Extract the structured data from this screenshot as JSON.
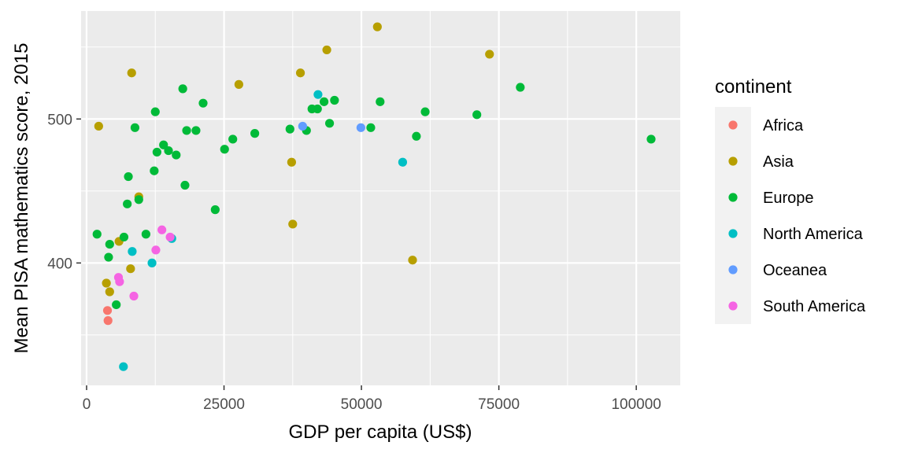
{
  "chart_data": {
    "type": "scatter",
    "xlabel": "GDP per capita (US$)",
    "ylabel": "Mean PISA mathematics score, 2015",
    "xlim": [
      -1000,
      108000
    ],
    "ylim": [
      315,
      575
    ],
    "x_ticks": [
      0,
      25000,
      50000,
      75000,
      100000
    ],
    "x_tick_labels": [
      "0",
      "25000",
      "50000",
      "75000",
      "100000"
    ],
    "y_ticks": [
      400,
      500
    ],
    "y_tick_labels": [
      "400",
      "500"
    ],
    "y_minor_ticks": [
      350,
      450,
      550
    ],
    "grid": true,
    "legend": {
      "title": "continent",
      "position": "right"
    },
    "series": [
      {
        "name": "Africa",
        "color": "#F8766D",
        "points": [
          [
            3800,
            367
          ],
          [
            3900,
            360
          ]
        ]
      },
      {
        "name": "Asia",
        "color": "#B79F00",
        "points": [
          [
            2200,
            495
          ],
          [
            8200,
            532
          ],
          [
            9500,
            446
          ],
          [
            5900,
            415
          ],
          [
            3600,
            386
          ],
          [
            4200,
            380
          ],
          [
            8000,
            396
          ],
          [
            27700,
            524
          ],
          [
            37300,
            470
          ],
          [
            37500,
            427
          ],
          [
            38900,
            532
          ],
          [
            43700,
            548
          ],
          [
            52900,
            564
          ],
          [
            59300,
            402
          ],
          [
            73300,
            545
          ]
        ]
      },
      {
        "name": "Europe",
        "color": "#00BA38",
        "points": [
          [
            1900,
            420
          ],
          [
            4000,
            404
          ],
          [
            4200,
            413
          ],
          [
            5400,
            371
          ],
          [
            6800,
            418
          ],
          [
            7400,
            441
          ],
          [
            7600,
            460
          ],
          [
            8800,
            494
          ],
          [
            9500,
            444
          ],
          [
            10800,
            420
          ],
          [
            12300,
            464
          ],
          [
            12500,
            505
          ],
          [
            12800,
            477
          ],
          [
            14000,
            482
          ],
          [
            14900,
            478
          ],
          [
            16300,
            475
          ],
          [
            17500,
            521
          ],
          [
            17900,
            454
          ],
          [
            18200,
            492
          ],
          [
            19900,
            492
          ],
          [
            21200,
            511
          ],
          [
            23400,
            437
          ],
          [
            25100,
            479
          ],
          [
            26600,
            486
          ],
          [
            30600,
            490
          ],
          [
            37000,
            493
          ],
          [
            40000,
            492
          ],
          [
            41000,
            507
          ],
          [
            42000,
            507
          ],
          [
            43200,
            512
          ],
          [
            44200,
            497
          ],
          [
            45100,
            513
          ],
          [
            51700,
            494
          ],
          [
            53400,
            512
          ],
          [
            60000,
            488
          ],
          [
            61600,
            505
          ],
          [
            71000,
            503
          ],
          [
            78900,
            522
          ],
          [
            102700,
            486
          ]
        ]
      },
      {
        "name": "North America",
        "color": "#00BFC4",
        "points": [
          [
            6700,
            328
          ],
          [
            8300,
            408
          ],
          [
            11900,
            400
          ],
          [
            15500,
            417
          ],
          [
            42100,
            517
          ],
          [
            57500,
            470
          ]
        ]
      },
      {
        "name": "Oceanea",
        "color": "#619CFF",
        "points": [
          [
            39300,
            495
          ],
          [
            49900,
            494
          ]
        ]
      },
      {
        "name": "South America",
        "color": "#F564E3",
        "points": [
          [
            5800,
            390
          ],
          [
            6000,
            387
          ],
          [
            8600,
            377
          ],
          [
            12600,
            409
          ],
          [
            13700,
            423
          ],
          [
            15200,
            418
          ]
        ]
      }
    ]
  }
}
